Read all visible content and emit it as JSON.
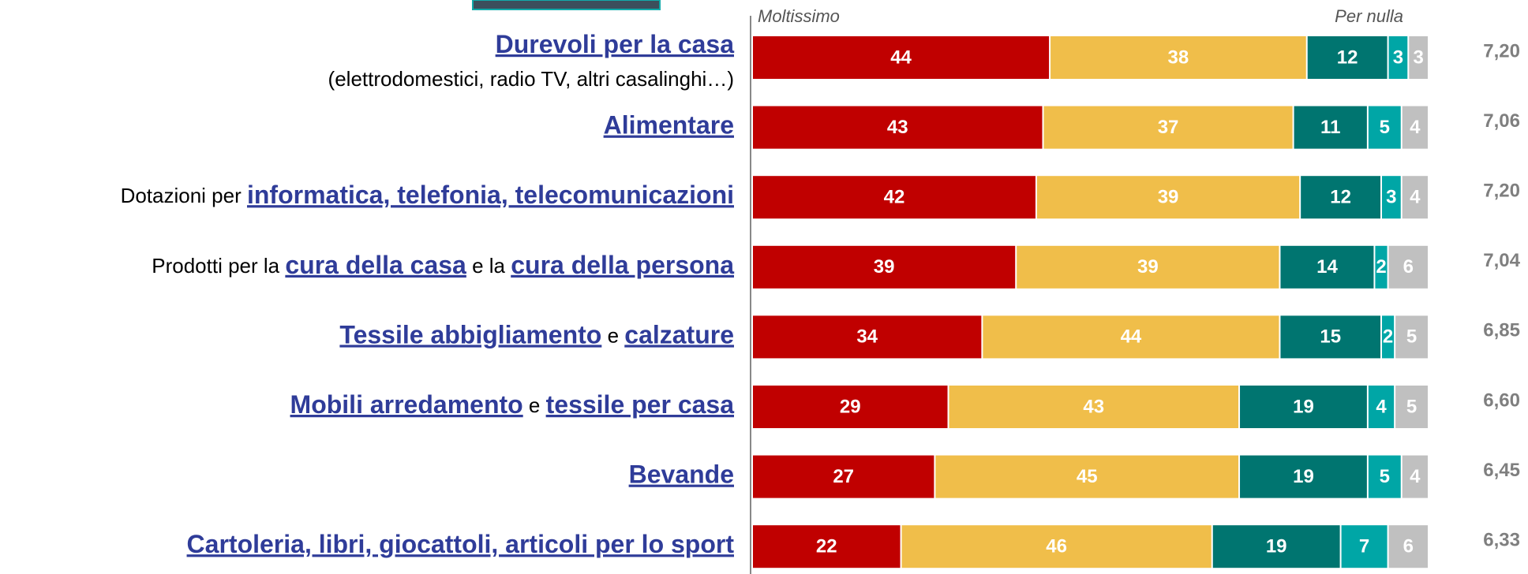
{
  "chart_data": {
    "type": "stacked-bar",
    "scale_labels": [
      "Moltissimo",
      "Per nulla"
    ],
    "categories": [
      {
        "parts": [
          {
            "text": "Durevoli per la casa",
            "link": true
          }
        ],
        "note": "(elettrodomestici, radio TV, altri casalinghi…)"
      },
      {
        "parts": [
          {
            "text": "Alimentare",
            "link": true
          }
        ]
      },
      {
        "parts": [
          {
            "text": "Dotazioni per ",
            "link": false
          },
          {
            "text": "informatica, telefonia, telecomunicazioni",
            "link": true
          }
        ]
      },
      {
        "parts": [
          {
            "text": "Prodotti per la ",
            "link": false
          },
          {
            "text": "cura della casa",
            "link": true
          },
          {
            "text": " e la ",
            "link": false
          },
          {
            "text": "cura della persona",
            "link": true
          }
        ]
      },
      {
        "parts": [
          {
            "text": "Tessile abbigliamento",
            "link": true
          },
          {
            "text": " e ",
            "link": false
          },
          {
            "text": "calzature",
            "link": true
          }
        ]
      },
      {
        "parts": [
          {
            "text": "Mobili arredamento",
            "link": true
          },
          {
            "text": " e ",
            "link": false
          },
          {
            "text": "tessile per casa",
            "link": true
          }
        ]
      },
      {
        "parts": [
          {
            "text": "Bevande",
            "link": true
          }
        ]
      },
      {
        "parts": [
          {
            "text": "Cartoleria, libri, giocattoli, articoli per lo sport",
            "link": true
          }
        ]
      }
    ],
    "series": [
      {
        "color": "#c00000",
        "values": [
          44,
          43,
          42,
          39,
          34,
          29,
          27,
          22
        ]
      },
      {
        "color": "#f0be4a",
        "values": [
          38,
          37,
          39,
          39,
          44,
          43,
          45,
          46
        ]
      },
      {
        "color": "#007570",
        "values": [
          12,
          11,
          12,
          14,
          15,
          19,
          19,
          19
        ]
      },
      {
        "color": "#00a6a6",
        "values": [
          3,
          5,
          3,
          2,
          2,
          4,
          5,
          7
        ]
      },
      {
        "color": "#c0c0c0",
        "values": [
          3,
          4,
          4,
          6,
          5,
          5,
          4,
          6
        ]
      }
    ],
    "xlim": [
      0,
      100
    ],
    "scores": {
      "values": [
        7.2,
        7.06,
        7.2,
        7.04,
        6.85,
        6.6,
        6.45,
        6.33
      ],
      "value_labels": [
        "7,20",
        "7,06",
        "7,20",
        "7,04",
        "6,85",
        "6,60",
        "6,45",
        "6,33"
      ]
    }
  }
}
